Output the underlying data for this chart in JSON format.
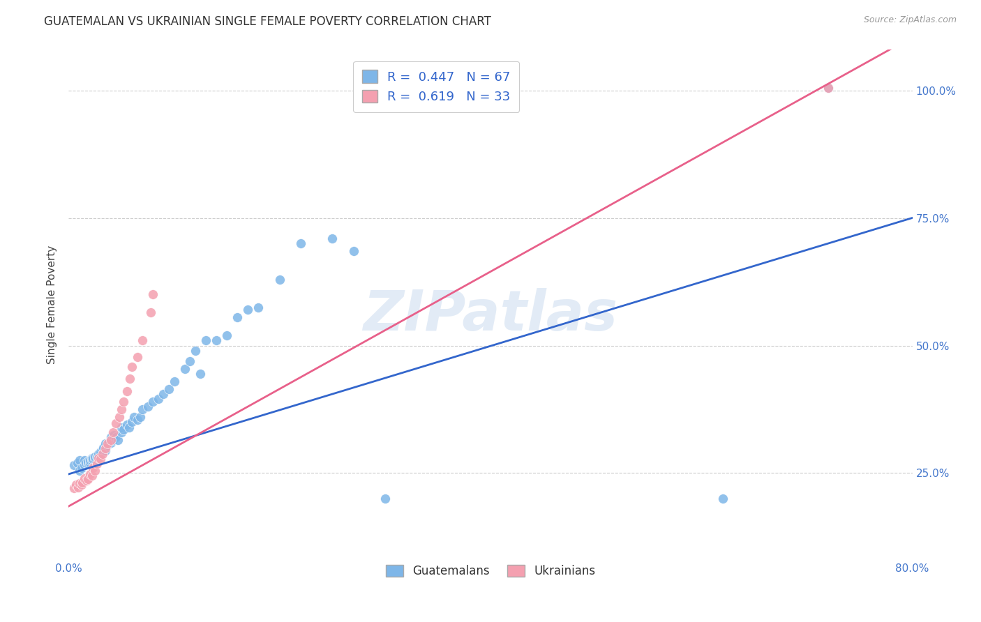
{
  "title": "GUATEMALAN VS UKRAINIAN SINGLE FEMALE POVERTY CORRELATION CHART",
  "source": "Source: ZipAtlas.com",
  "ylabel": "Single Female Poverty",
  "xlabel_ticks": [
    "0.0%",
    "",
    "",
    "",
    "80.0%"
  ],
  "ylabel_ticks": [
    "25.0%",
    "50.0%",
    "75.0%",
    "100.0%"
  ],
  "xlim": [
    0.0,
    0.8
  ],
  "ylim": [
    0.08,
    1.08
  ],
  "blue_color": "#7EB6E8",
  "pink_color": "#F4A0B0",
  "blue_line_color": "#3366CC",
  "pink_line_color": "#E8608A",
  "watermark": "ZIPatlas",
  "legend_R_blue": "0.447",
  "legend_N_blue": "67",
  "legend_R_pink": "0.619",
  "legend_N_pink": "33",
  "blue_intercept": 0.248,
  "blue_slope": 0.628,
  "pink_intercept": 0.185,
  "pink_slope": 1.15,
  "blue_points_x": [
    0.005,
    0.008,
    0.01,
    0.01,
    0.012,
    0.015,
    0.015,
    0.016,
    0.018,
    0.018,
    0.02,
    0.02,
    0.022,
    0.022,
    0.023,
    0.025,
    0.025,
    0.027,
    0.028,
    0.028,
    0.03,
    0.03,
    0.032,
    0.033,
    0.035,
    0.035,
    0.037,
    0.038,
    0.04,
    0.04,
    0.042,
    0.043,
    0.045,
    0.047,
    0.05,
    0.05,
    0.052,
    0.055,
    0.057,
    0.06,
    0.062,
    0.065,
    0.068,
    0.07,
    0.075,
    0.08,
    0.085,
    0.09,
    0.095,
    0.1,
    0.11,
    0.115,
    0.12,
    0.125,
    0.13,
    0.14,
    0.15,
    0.16,
    0.17,
    0.18,
    0.2,
    0.22,
    0.25,
    0.27,
    0.3,
    0.62,
    0.72
  ],
  "blue_points_y": [
    0.265,
    0.27,
    0.255,
    0.275,
    0.26,
    0.265,
    0.275,
    0.27,
    0.268,
    0.272,
    0.27,
    0.275,
    0.275,
    0.28,
    0.278,
    0.278,
    0.282,
    0.282,
    0.282,
    0.288,
    0.288,
    0.292,
    0.295,
    0.3,
    0.295,
    0.308,
    0.305,
    0.31,
    0.31,
    0.32,
    0.315,
    0.325,
    0.32,
    0.315,
    0.33,
    0.34,
    0.335,
    0.345,
    0.34,
    0.35,
    0.36,
    0.355,
    0.36,
    0.375,
    0.38,
    0.39,
    0.395,
    0.405,
    0.415,
    0.43,
    0.455,
    0.47,
    0.49,
    0.445,
    0.51,
    0.51,
    0.52,
    0.555,
    0.57,
    0.575,
    0.63,
    0.7,
    0.71,
    0.685,
    0.2,
    0.2,
    1.005
  ],
  "pink_points_x": [
    0.005,
    0.007,
    0.009,
    0.01,
    0.012,
    0.013,
    0.015,
    0.017,
    0.018,
    0.02,
    0.022,
    0.023,
    0.025,
    0.027,
    0.028,
    0.03,
    0.032,
    0.035,
    0.037,
    0.04,
    0.042,
    0.045,
    0.048,
    0.05,
    0.052,
    0.055,
    0.058,
    0.06,
    0.065,
    0.07,
    0.078,
    0.08,
    0.72
  ],
  "pink_points_y": [
    0.22,
    0.228,
    0.222,
    0.23,
    0.228,
    0.232,
    0.24,
    0.235,
    0.238,
    0.248,
    0.245,
    0.26,
    0.255,
    0.268,
    0.28,
    0.278,
    0.288,
    0.298,
    0.308,
    0.315,
    0.33,
    0.348,
    0.36,
    0.375,
    0.39,
    0.41,
    0.435,
    0.458,
    0.478,
    0.51,
    0.565,
    0.6,
    1.005
  ]
}
